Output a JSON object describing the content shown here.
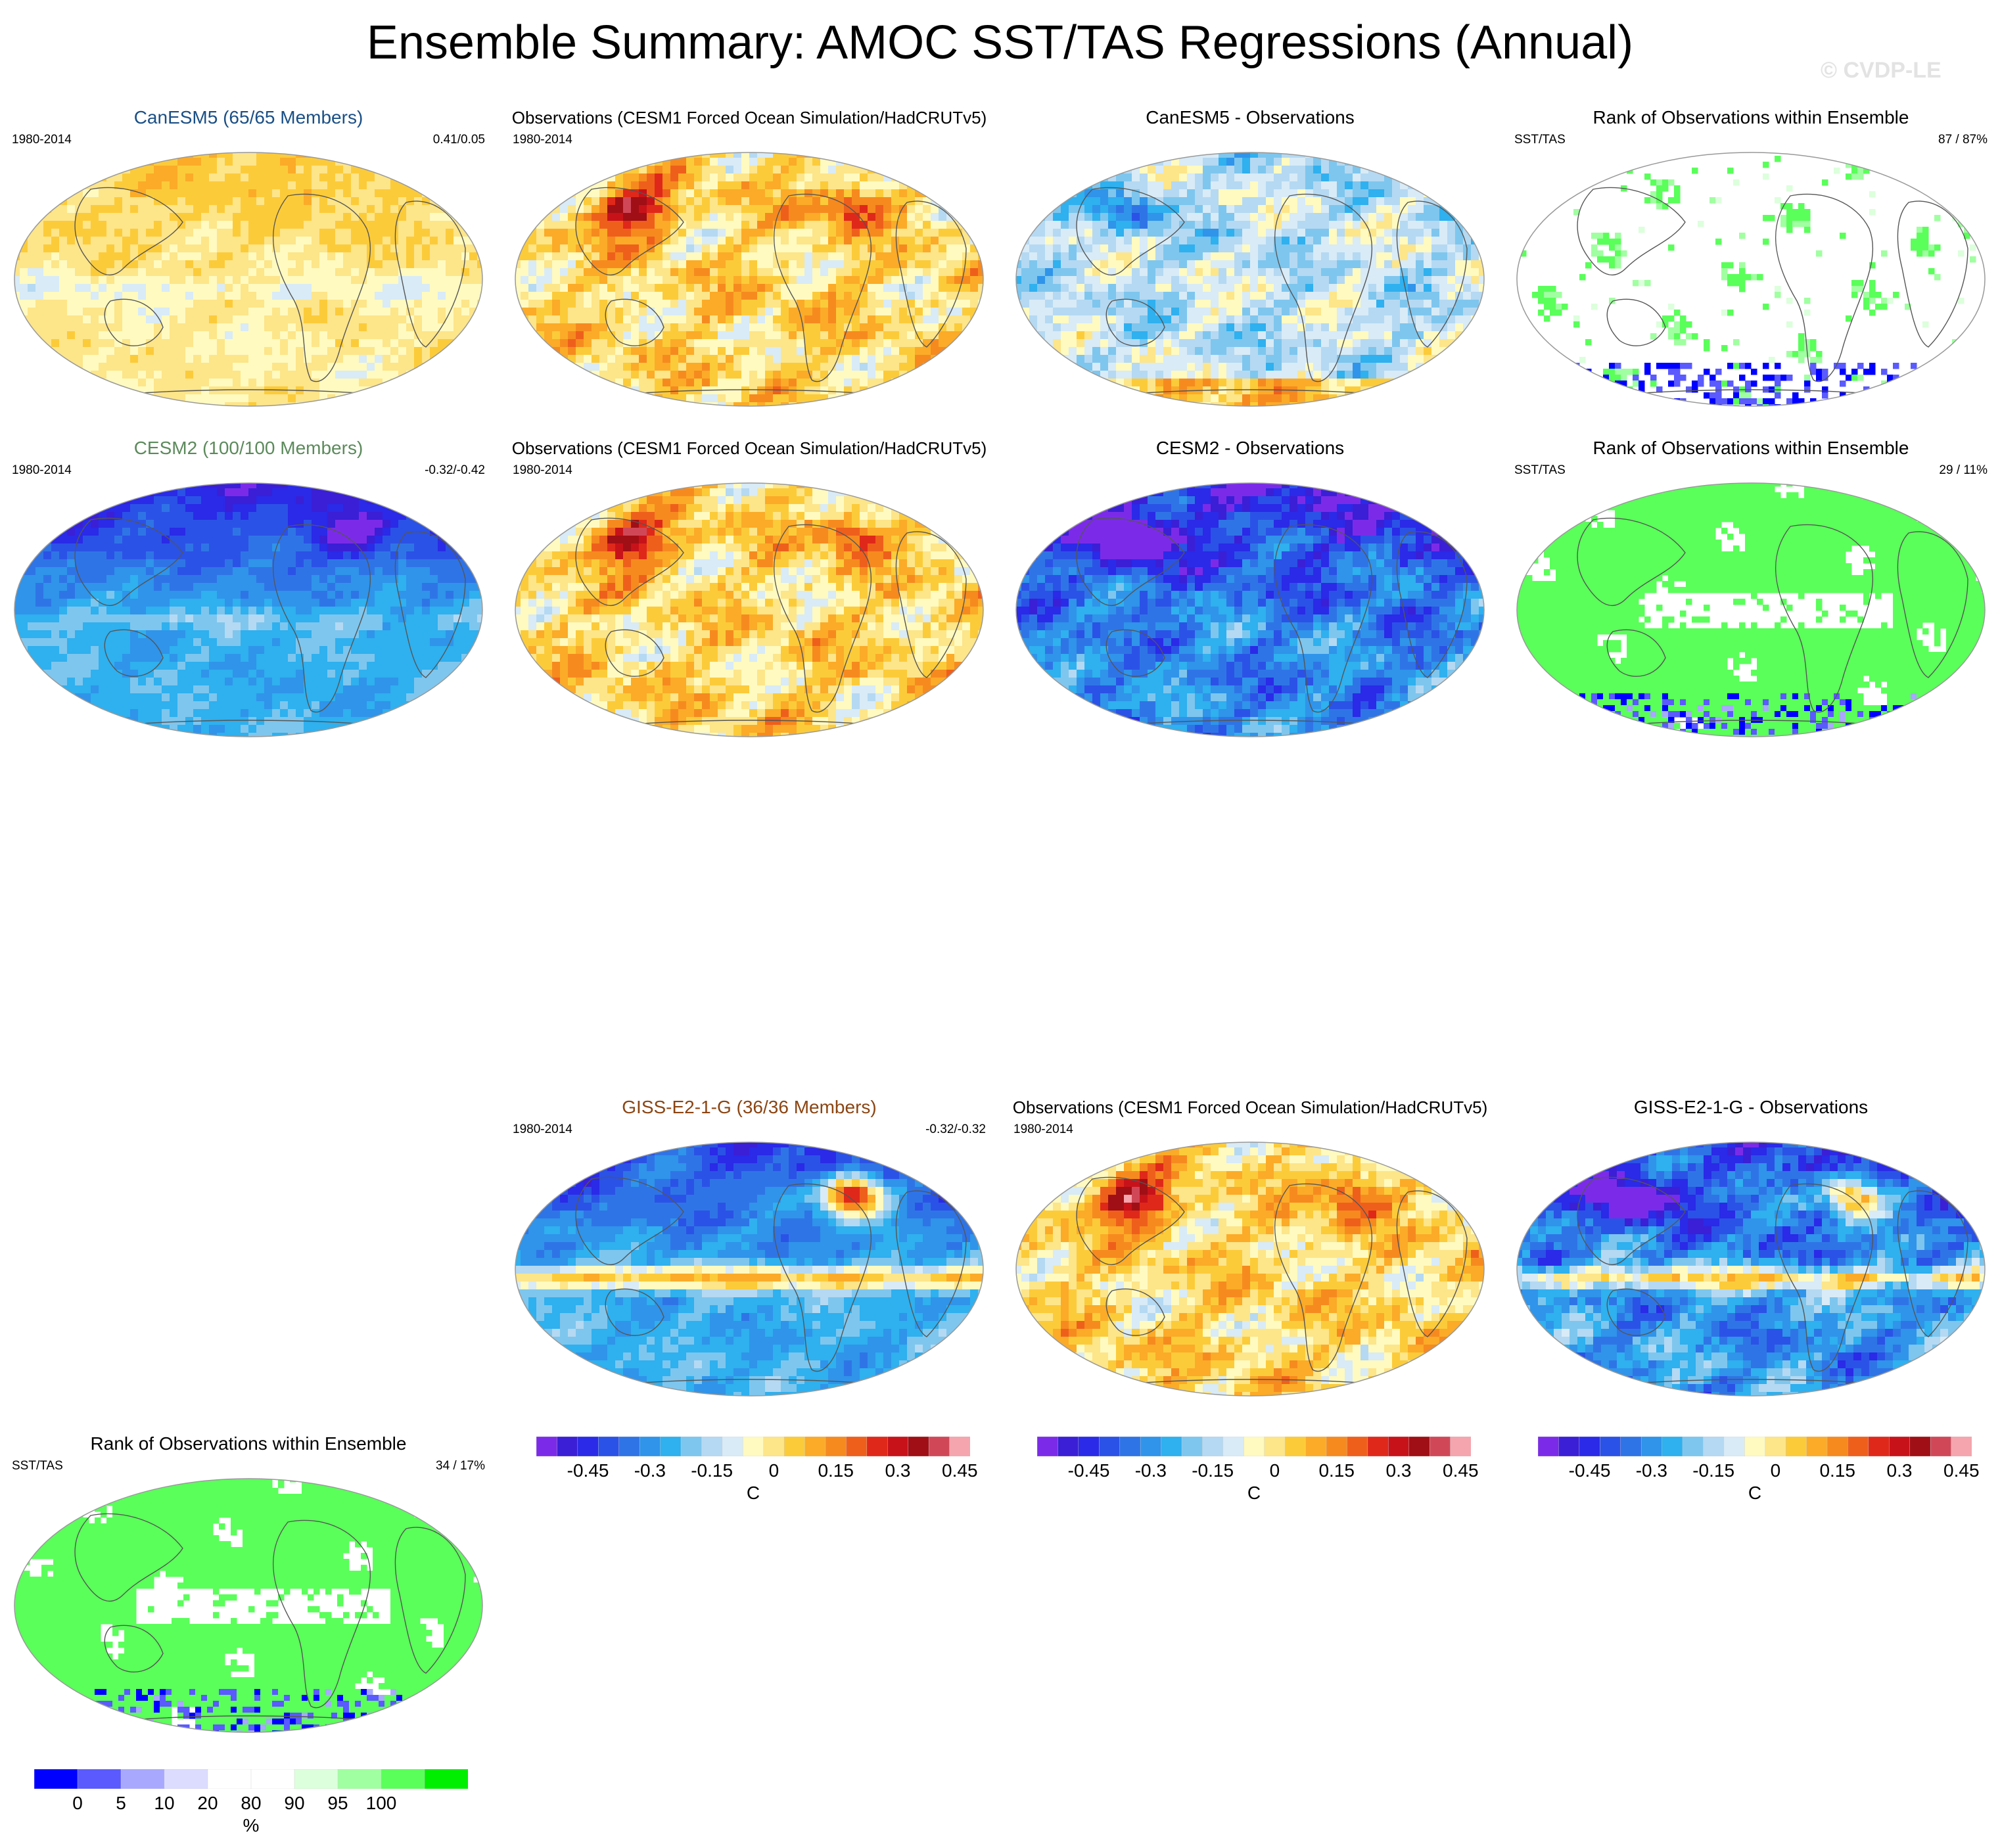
{
  "title": "Ensemble Summary: AMOC SST/TAS Regressions (Annual)",
  "watermark": "© CVDP-LE",
  "rows": [
    {
      "panels": [
        {
          "id": "canesm5",
          "title": "CanESM5 (65/65 Members)",
          "title_color": "#1a4f86",
          "left": "1980-2014",
          "right": "0.41/0.05",
          "kind": "warmweak"
        },
        {
          "id": "obs1",
          "title": "Observations (CESM1 Forced Ocean Simulation/HadCRUTv5)",
          "title_color": "#000000",
          "left": "1980-2014",
          "right": "",
          "kind": "obs"
        },
        {
          "id": "canesm5-diff",
          "title": "CanESM5 - Observations",
          "title_color": "#000000",
          "left": "",
          "right": "",
          "kind": "diffmild"
        },
        {
          "id": "canesm5-rank",
          "title": "Rank of Observations within Ensemble",
          "title_color": "#000000",
          "left": "SST/TAS",
          "right": "87 /  87%",
          "kind": "ranksparse"
        }
      ]
    },
    {
      "panels": [
        {
          "id": "cesm2",
          "title": "CESM2 (100/100 Members)",
          "title_color": "#5c8a5c",
          "left": "1980-2014",
          "right": "-0.32/-0.42",
          "kind": "cold"
        },
        {
          "id": "obs2",
          "title": "Observations (CESM1 Forced Ocean Simulation/HadCRUTv5)",
          "title_color": "#000000",
          "left": "1980-2014",
          "right": "",
          "kind": "obs"
        },
        {
          "id": "cesm2-diff",
          "title": "CESM2 - Observations",
          "title_color": "#000000",
          "left": "",
          "right": "",
          "kind": "diffcold"
        },
        {
          "id": "cesm2-rank",
          "title": "Rank of Observations within Ensemble",
          "title_color": "#000000",
          "left": "SST/TAS",
          "right": "29 /  11%",
          "kind": "rankdense"
        }
      ]
    },
    {
      "panels": [
        {
          "id": "giss",
          "title": "GISS-E2-1-G (36/36 Members)",
          "title_color": "#8b4513",
          "left": "1980-2014",
          "right": "-0.32/-0.32",
          "kind": "giss"
        },
        {
          "id": "obs3",
          "title": "Observations (CESM1 Forced Ocean Simulation/HadCRUTv5)",
          "title_color": "#000000",
          "left": "1980-2014",
          "right": "",
          "kind": "obs"
        },
        {
          "id": "giss-diff",
          "title": "GISS-E2-1-G - Observations",
          "title_color": "#000000",
          "left": "",
          "right": "",
          "kind": "diffgiss"
        },
        {
          "id": "giss-rank",
          "title": "Rank of Observations within Ensemble",
          "title_color": "#000000",
          "left": "SST/TAS",
          "right": "34 /  17%",
          "kind": "rankdense"
        }
      ]
    }
  ],
  "colorbar_regression": {
    "colors": [
      "#7b2be8",
      "#3a1fd6",
      "#2a2ae8",
      "#2b52e6",
      "#2f74e6",
      "#2f94ea",
      "#2fb0ef",
      "#7ec6ee",
      "#b5d9f2",
      "#d8ebf7",
      "#fffac0",
      "#fde58a",
      "#fccb3a",
      "#fbab28",
      "#f68a1f",
      "#ef5f1c",
      "#e0281a",
      "#c8121a",
      "#a00f15",
      "#d04858",
      "#f4a5ad"
    ],
    "ticks": [
      "-0.45",
      "-0.3",
      "-0.15",
      "0",
      "0.15",
      "0.3",
      "0.45"
    ],
    "unit": "C"
  },
  "colorbar_rank": {
    "colors": [
      "#0000ff",
      "#5a5aff",
      "#a8a8ff",
      "#dcdcff",
      "#ffffff",
      "#ffffff",
      "#dcffdc",
      "#a0ffa0",
      "#5aff5a",
      "#00ee00"
    ],
    "ticks": [
      "0",
      "5",
      "10",
      "20",
      "80",
      "90",
      "95",
      "100"
    ],
    "unit": "%"
  }
}
